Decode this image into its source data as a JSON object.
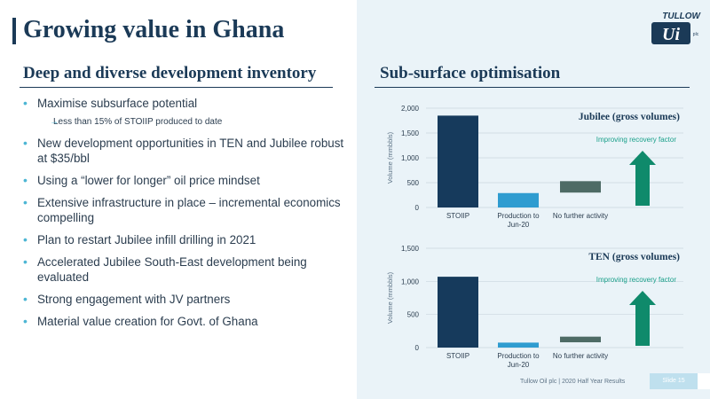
{
  "page": {
    "title": "Growing value in Ghana",
    "logo_text": "TULLOW",
    "logo_sub": "plc",
    "logo_mark": "Ui"
  },
  "left": {
    "heading": "Deep and diverse development inventory",
    "bullets": [
      {
        "text": "Maximise subsurface potential",
        "level": 1
      },
      {
        "text": "Less than 15% of STOIIP produced to date",
        "level": 2
      },
      {
        "text": "New development opportunities in TEN and Jubilee robust at $35/bbl",
        "level": 1
      },
      {
        "text": "Using a “lower for longer” oil price mindset",
        "level": 1
      },
      {
        "text": "Extensive infrastructure in place – incremental economics compelling",
        "level": 1
      },
      {
        "text": "Plan to restart Jubilee infill drilling in 2021",
        "level": 1
      },
      {
        "text": "Accelerated Jubilee South-East development being evaluated",
        "level": 1
      },
      {
        "text": "Strong engagement with JV partners",
        "level": 1
      },
      {
        "text": "Material value creation for Govt. of Ghana",
        "level": 1
      }
    ]
  },
  "right": {
    "heading": "Sub-surface optimisation"
  },
  "footer": {
    "text": "Tullow Oil plc | 2020 Half Year Results",
    "slide": "Slide 15"
  },
  "colors": {
    "navy": "#1b3a57",
    "bar_dark": "#163a5c",
    "bar_blue": "#2f9cd0",
    "bar_gray": "#4e6b65",
    "arrow_green": "#0f8a6b",
    "accent": "#4db6d4"
  },
  "chart_data": [
    {
      "type": "bar",
      "title": "Jubilee (gross volumes)",
      "ylabel": "Volume (mmbbls)",
      "categories": [
        "STOIIP",
        "Production to Jun-20",
        "No further activity"
      ],
      "values": [
        1850,
        290,
        null
      ],
      "floating_bar": {
        "category": "No further activity",
        "from": 300,
        "to": 530
      },
      "ylim": [
        0,
        2000
      ],
      "yticks": [
        "0",
        "500",
        "1,000",
        "1,500",
        "2,000"
      ],
      "annotation": "Improving recovery factor",
      "grid": true
    },
    {
      "type": "bar",
      "title": "TEN (gross volumes)",
      "ylabel": "Volume (mmbbls)",
      "categories": [
        "STOIIP",
        "Production to Jun-20",
        "No further activity"
      ],
      "values": [
        1070,
        75,
        null
      ],
      "floating_bar": {
        "category": "No further activity",
        "from": 80,
        "to": 165
      },
      "ylim": [
        0,
        1500
      ],
      "yticks": [
        "0",
        "500",
        "1,000",
        "1,500"
      ],
      "annotation": "Improving recovery factor",
      "grid": true
    }
  ]
}
